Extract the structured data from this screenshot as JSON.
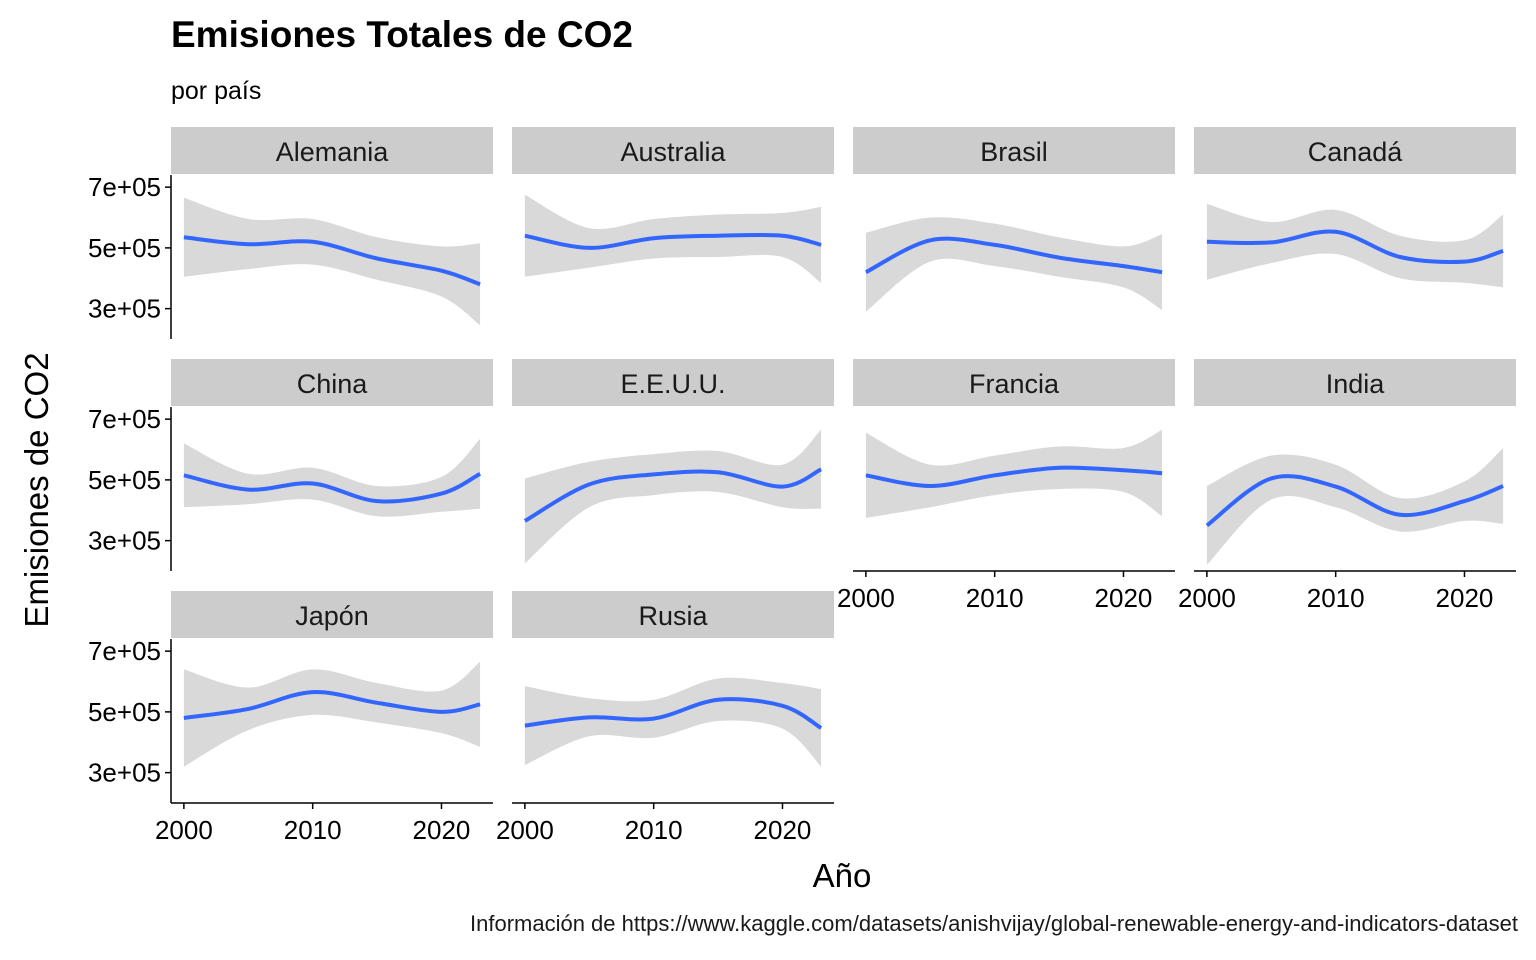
{
  "title": "Emisiones Totales de CO2",
  "subtitle": "por país",
  "caption": "Información de https://www.kaggle.com/datasets/anishvijay/global-renewable-energy-and-indicators-dataset",
  "colors": {
    "line": "#3366FF",
    "ribbon": "#D9D9D9",
    "strip": "#CCCCCC",
    "axis": "#000000"
  },
  "chart_data": {
    "type": "line",
    "title": "Emisiones Totales de CO2",
    "subtitle": "por país",
    "xlabel": "Año",
    "ylabel": "Emisiones de CO2",
    "x_ticks": [
      2000,
      2010,
      2020
    ],
    "x_tick_labels": [
      "2000",
      "2010",
      "2020"
    ],
    "xlim": [
      1999,
      2024
    ],
    "y_ticks": [
      300000,
      500000,
      700000
    ],
    "y_tick_labels": [
      "3e+05",
      "5e+05",
      "7e+05"
    ],
    "ylim": [
      200000,
      740000
    ],
    "grid": false,
    "legend": "none",
    "facet_columns": 4,
    "x": [
      2000,
      2005,
      2010,
      2015,
      2020,
      2023
    ],
    "series": [
      {
        "name": "Alemania",
        "values": [
          535000,
          512000,
          520000,
          465000,
          425000,
          380000
        ],
        "lower": [
          405000,
          430000,
          445000,
          395000,
          340000,
          245000
        ],
        "upper": [
          665000,
          595000,
          595000,
          535000,
          505000,
          515000
        ]
      },
      {
        "name": "Australia",
        "values": [
          540000,
          500000,
          532000,
          540000,
          540000,
          510000
        ],
        "lower": [
          405000,
          435000,
          465000,
          470000,
          470000,
          385000
        ],
        "upper": [
          675000,
          565000,
          595000,
          610000,
          615000,
          635000
        ]
      },
      {
        "name": "Brasil",
        "values": [
          420000,
          525000,
          510000,
          468000,
          440000,
          420000
        ],
        "lower": [
          290000,
          455000,
          440000,
          405000,
          370000,
          295000
        ],
        "upper": [
          550000,
          600000,
          580000,
          535000,
          505000,
          545000
        ]
      },
      {
        "name": "Canadá",
        "values": [
          520000,
          518000,
          553000,
          470000,
          455000,
          490000
        ],
        "lower": [
          395000,
          450000,
          480000,
          400000,
          385000,
          370000
        ],
        "upper": [
          645000,
          585000,
          625000,
          540000,
          525000,
          610000
        ]
      },
      {
        "name": "China",
        "values": [
          515000,
          468000,
          488000,
          430000,
          455000,
          520000
        ],
        "lower": [
          410000,
          420000,
          435000,
          380000,
          395000,
          405000
        ],
        "upper": [
          620000,
          520000,
          540000,
          480000,
          510000,
          635000
        ]
      },
      {
        "name": "E.E.U.U.",
        "values": [
          365000,
          485000,
          518000,
          525000,
          478000,
          535000
        ],
        "lower": [
          225000,
          410000,
          450000,
          460000,
          410000,
          405000
        ],
        "upper": [
          505000,
          560000,
          585000,
          595000,
          550000,
          665000
        ]
      },
      {
        "name": "Francia",
        "values": [
          515000,
          480000,
          515000,
          540000,
          532000,
          522000
        ],
        "lower": [
          375000,
          410000,
          450000,
          470000,
          460000,
          380000
        ],
        "upper": [
          655000,
          550000,
          580000,
          610000,
          605000,
          665000
        ]
      },
      {
        "name": "India",
        "values": [
          350000,
          505000,
          478000,
          385000,
          430000,
          480000
        ],
        "lower": [
          220000,
          435000,
          410000,
          330000,
          365000,
          355000
        ],
        "upper": [
          480000,
          580000,
          550000,
          440000,
          495000,
          605000
        ]
      },
      {
        "name": "Japón",
        "values": [
          480000,
          510000,
          565000,
          530000,
          500000,
          525000
        ],
        "lower": [
          320000,
          440000,
          490000,
          465000,
          430000,
          385000
        ],
        "upper": [
          640000,
          580000,
          640000,
          595000,
          570000,
          665000
        ]
      },
      {
        "name": "Rusia",
        "values": [
          455000,
          482000,
          478000,
          540000,
          520000,
          447000
        ],
        "lower": [
          325000,
          420000,
          415000,
          470000,
          445000,
          320000
        ],
        "upper": [
          585000,
          545000,
          540000,
          610000,
          595000,
          575000
        ]
      }
    ]
  }
}
